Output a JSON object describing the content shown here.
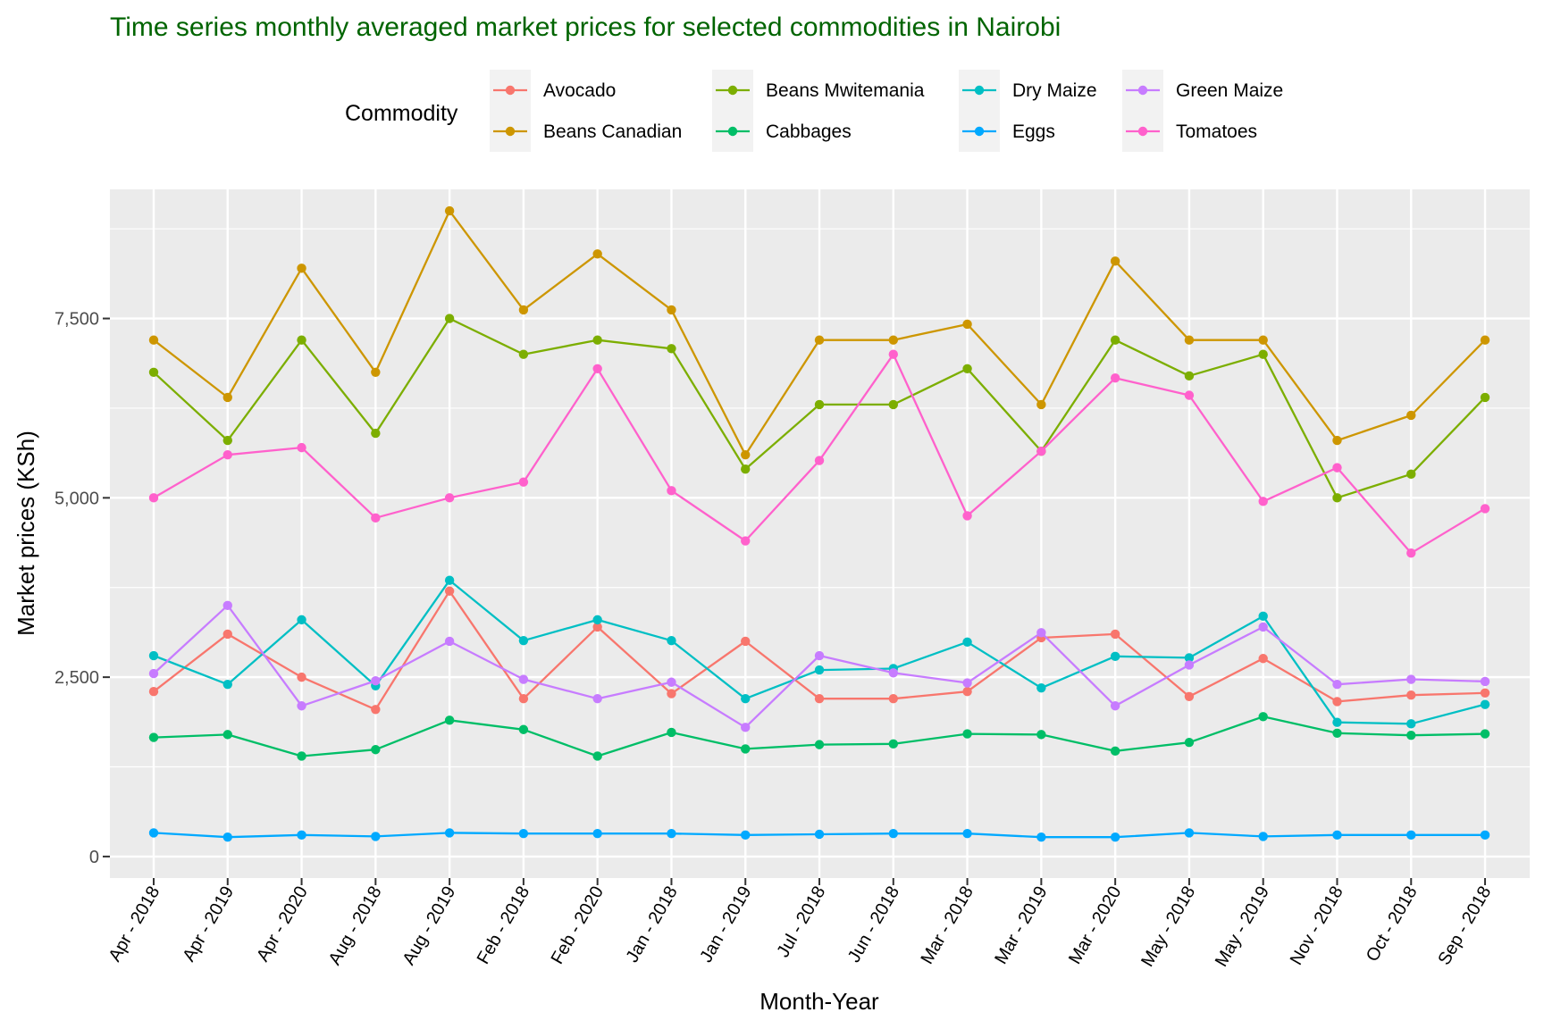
{
  "chart_data": {
    "type": "line",
    "title": "Time series monthly averaged market prices for selected commodities in Nairobi",
    "xlabel": "Month-Year",
    "ylabel": "Market prices (KSh)",
    "legend_title": "Commodity",
    "legend_position": "top",
    "grid": true,
    "ylim": [
      -300,
      9300
    ],
    "yticks": [
      0,
      2500,
      5000,
      7500
    ],
    "ytick_labels": [
      "0",
      "2,500",
      "5,000",
      "7,500"
    ],
    "categories": [
      "Apr - 2018",
      "Apr - 2019",
      "Apr - 2020",
      "Aug - 2018",
      "Aug - 2019",
      "Feb - 2018",
      "Feb - 2020",
      "Jan - 2018",
      "Jan - 2019",
      "Jul - 2018",
      "Jun - 2018",
      "Mar - 2018",
      "Mar - 2019",
      "Mar - 2020",
      "May - 2018",
      "May - 2019",
      "Nov - 2018",
      "Oct - 2018",
      "Sep - 2018"
    ],
    "series": [
      {
        "name": "Avocado",
        "color": "#F8766D",
        "values": [
          2300,
          3100,
          2500,
          2050,
          3700,
          2200,
          3200,
          2270,
          3000,
          2200,
          2200,
          2300,
          3050,
          3100,
          2230,
          2760,
          2160,
          2250,
          2280
        ]
      },
      {
        "name": "Beans Canadian",
        "color": "#CD9600",
        "values": [
          7200,
          6400,
          8200,
          6750,
          9000,
          7620,
          8400,
          7620,
          5600,
          7200,
          7200,
          7420,
          6300,
          8300,
          7200,
          7200,
          5800,
          6150,
          7200
        ]
      },
      {
        "name": "Beans Mwitemania",
        "color": "#7CAE00",
        "values": [
          6750,
          5800,
          7200,
          5900,
          7500,
          7000,
          7200,
          7080,
          5400,
          6300,
          6300,
          6800,
          5650,
          7200,
          6700,
          7000,
          5000,
          5330,
          6400
        ]
      },
      {
        "name": "Cabbages",
        "color": "#00BE67",
        "values": [
          1660,
          1700,
          1400,
          1490,
          1900,
          1770,
          1400,
          1730,
          1500,
          1560,
          1570,
          1710,
          1700,
          1470,
          1590,
          1950,
          1720,
          1690,
          1710
        ]
      },
      {
        "name": "Dry Maize",
        "color": "#00BFC4",
        "values": [
          2800,
          2400,
          3300,
          2380,
          3850,
          3010,
          3300,
          3010,
          2200,
          2600,
          2620,
          2990,
          2350,
          2790,
          2770,
          3350,
          1870,
          1850,
          2120
        ]
      },
      {
        "name": "Eggs",
        "color": "#00A9FF",
        "values": [
          330,
          270,
          300,
          280,
          330,
          320,
          320,
          320,
          300,
          310,
          320,
          320,
          270,
          270,
          330,
          280,
          300,
          300,
          300
        ]
      },
      {
        "name": "Green Maize",
        "color": "#C77CFF",
        "values": [
          2550,
          3500,
          2100,
          2450,
          3000,
          2470,
          2200,
          2430,
          1800,
          2800,
          2560,
          2420,
          3120,
          2100,
          2670,
          3200,
          2400,
          2470,
          2440
        ]
      },
      {
        "name": "Tomatoes",
        "color": "#FF61CC",
        "values": [
          5000,
          5600,
          5700,
          4720,
          5000,
          5220,
          6800,
          5100,
          4400,
          5520,
          7000,
          4750,
          5650,
          6670,
          6430,
          4950,
          5420,
          4230,
          4850
        ]
      }
    ]
  }
}
